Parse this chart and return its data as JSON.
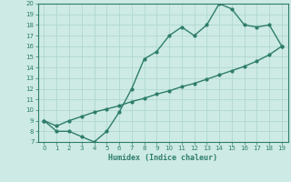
{
  "xlabel": "Humidex (Indice chaleur)",
  "line1_x": [
    0,
    1,
    2,
    3,
    4,
    5,
    6,
    7,
    8,
    9,
    10,
    11,
    12,
    13,
    14,
    15,
    16,
    17,
    18,
    19
  ],
  "line1_y": [
    9,
    8,
    8,
    7.5,
    7,
    8,
    9.8,
    12,
    14.8,
    15.5,
    17,
    17.8,
    17,
    18,
    20,
    19.5,
    18,
    17.8,
    18,
    16
  ],
  "line2_x": [
    0,
    1,
    2,
    3,
    4,
    5,
    6,
    7,
    8,
    9,
    10,
    11,
    12,
    13,
    14,
    15,
    16,
    17,
    18,
    19
  ],
  "line2_y": [
    9,
    8.5,
    9.0,
    9.4,
    9.8,
    10.1,
    10.4,
    10.8,
    11.1,
    11.5,
    11.8,
    12.2,
    12.5,
    12.9,
    13.3,
    13.7,
    14.1,
    14.6,
    15.2,
    16
  ],
  "line_color": "#2e7d6b",
  "bg_color": "#cdeae4",
  "grid_color": "#b0d8d0",
  "ylim": [
    7,
    20
  ],
  "xlim": [
    -0.5,
    19.5
  ],
  "yticks": [
    7,
    8,
    9,
    10,
    11,
    12,
    13,
    14,
    15,
    16,
    17,
    18,
    19,
    20
  ],
  "xticks": [
    0,
    1,
    2,
    3,
    4,
    5,
    6,
    7,
    8,
    9,
    10,
    11,
    12,
    13,
    14,
    15,
    16,
    17,
    18,
    19
  ],
  "tick_labelsize": 5,
  "xlabel_fontsize": 6,
  "marker_size": 2.0,
  "linewidth": 1.0
}
